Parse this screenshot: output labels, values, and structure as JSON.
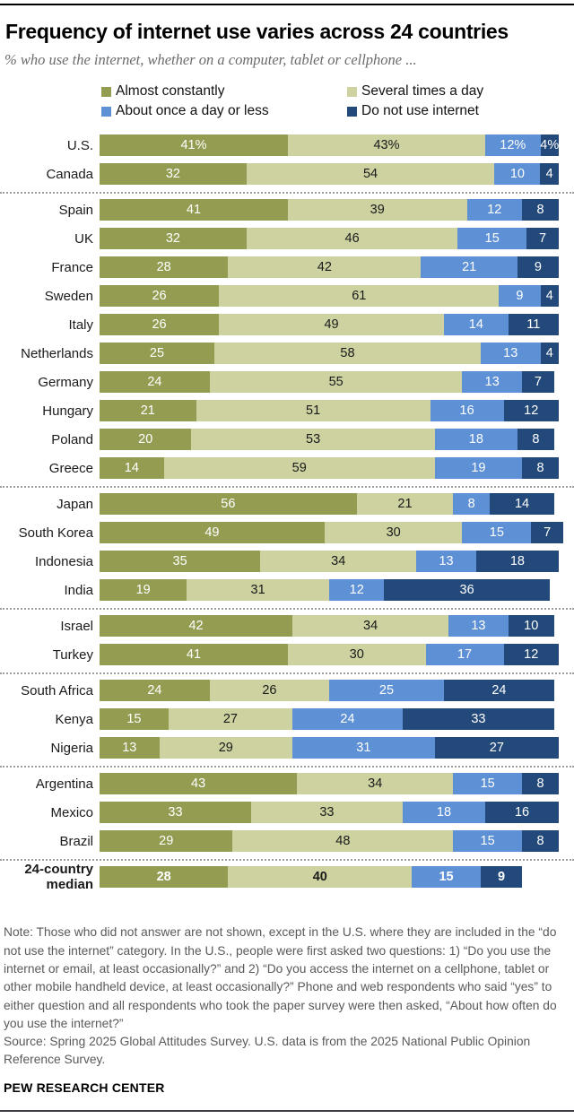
{
  "header": {
    "title": "Frequency of internet use varies across 24 countries",
    "subtitle": "% who use the internet, whether on a computer, tablet or cellphone ..."
  },
  "legend": {
    "items": [
      {
        "label": "Almost constantly",
        "color": "#949c52"
      },
      {
        "label": "Several times a day",
        "color": "#cdd2a0"
      },
      {
        "label": "About once a day or less",
        "color": "#5d90d5"
      },
      {
        "label": "Do not use internet",
        "color": "#22497a"
      }
    ]
  },
  "chart_data": {
    "type": "bar",
    "stacked": true,
    "orientation": "horizontal",
    "xlim": [
      0,
      100
    ],
    "unit": "%",
    "title": "Frequency of internet use varies across 24 countries",
    "series": [
      "Almost constantly",
      "Several times a day",
      "About once a day or less",
      "Do not use internet"
    ],
    "series_colors": [
      "#949c52",
      "#cdd2a0",
      "#5d90d5",
      "#22497a"
    ],
    "value_label_colors": [
      "#ffffff",
      "#1a1a1a",
      "#ffffff",
      "#ffffff"
    ],
    "groups": [
      {
        "rows": [
          {
            "label": "U.S.",
            "values": [
              41,
              43,
              12,
              4
            ],
            "suffix": "%"
          },
          {
            "label": "Canada",
            "values": [
              32,
              54,
              10,
              4
            ]
          }
        ]
      },
      {
        "rows": [
          {
            "label": "Spain",
            "values": [
              41,
              39,
              12,
              8
            ]
          },
          {
            "label": "UK",
            "values": [
              32,
              46,
              15,
              7
            ]
          },
          {
            "label": "France",
            "values": [
              28,
              42,
              21,
              9
            ]
          },
          {
            "label": "Sweden",
            "values": [
              26,
              61,
              9,
              4
            ]
          },
          {
            "label": "Italy",
            "values": [
              26,
              49,
              14,
              11
            ]
          },
          {
            "label": "Netherlands",
            "values": [
              25,
              58,
              13,
              4
            ]
          },
          {
            "label": "Germany",
            "values": [
              24,
              55,
              13,
              7
            ]
          },
          {
            "label": "Hungary",
            "values": [
              21,
              51,
              16,
              12
            ]
          },
          {
            "label": "Poland",
            "values": [
              20,
              53,
              18,
              8
            ]
          },
          {
            "label": "Greece",
            "values": [
              14,
              59,
              19,
              8
            ]
          }
        ]
      },
      {
        "rows": [
          {
            "label": "Japan",
            "values": [
              56,
              21,
              8,
              14
            ]
          },
          {
            "label": "South Korea",
            "values": [
              49,
              30,
              15,
              7
            ]
          },
          {
            "label": "Indonesia",
            "values": [
              35,
              34,
              13,
              18
            ]
          },
          {
            "label": "India",
            "values": [
              19,
              31,
              12,
              36
            ]
          }
        ]
      },
      {
        "rows": [
          {
            "label": "Israel",
            "values": [
              42,
              34,
              13,
              10
            ]
          },
          {
            "label": "Turkey",
            "values": [
              41,
              30,
              17,
              12
            ]
          }
        ]
      },
      {
        "rows": [
          {
            "label": "South Africa",
            "values": [
              24,
              26,
              25,
              24
            ]
          },
          {
            "label": "Kenya",
            "values": [
              15,
              27,
              24,
              33
            ]
          },
          {
            "label": "Nigeria",
            "values": [
              13,
              29,
              31,
              27
            ]
          }
        ]
      },
      {
        "rows": [
          {
            "label": "Argentina",
            "values": [
              43,
              34,
              15,
              8
            ]
          },
          {
            "label": "Mexico",
            "values": [
              33,
              33,
              18,
              16
            ]
          },
          {
            "label": "Brazil",
            "values": [
              29,
              48,
              15,
              8
            ]
          }
        ]
      },
      {
        "rows": [
          {
            "label": "24-country median",
            "values": [
              28,
              40,
              15,
              9
            ],
            "bold": true
          }
        ]
      }
    ]
  },
  "footer": {
    "note": "Note: Those who did not answer are not shown, except in the U.S. where they are included in the “do not use the internet” category. In the U.S., people were first asked two questions: 1) “Do you use the internet or email, at least occasionally?” and 2) “Do you access the internet on a cellphone, tablet or other mobile handheld device, at least occasionally?” Phone and web respondents who said “yes” to either question and all respondents who took the paper survey were then asked, “About how often do you use the internet?”",
    "source": "Source: Spring 2025 Global Attitudes Survey. U.S. data is from the 2025 National Public Opinion Reference Survey.",
    "brand": "PEW RESEARCH CENTER"
  }
}
